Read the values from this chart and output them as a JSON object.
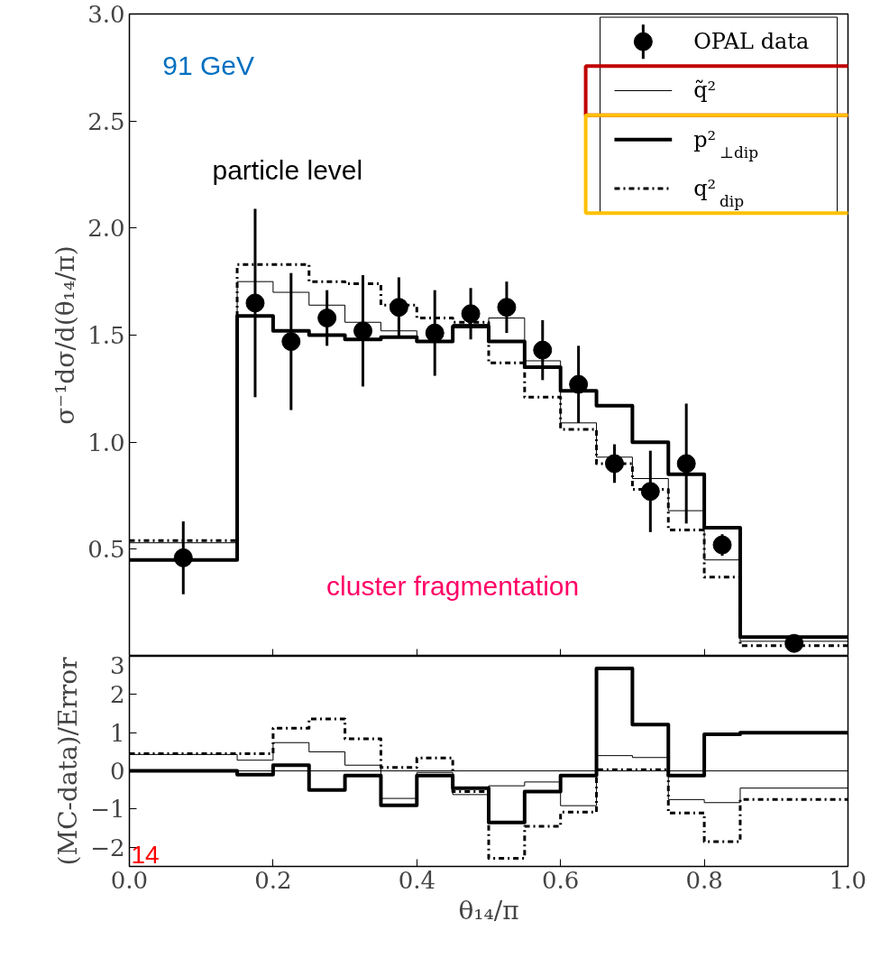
{
  "chart_data": [
    {
      "type": "step",
      "ylabel": "σ⁻¹dσ/d(θ₁₄/π)",
      "xlim": [
        0,
        1
      ],
      "ylim": [
        0,
        3
      ],
      "xticks": [
        0,
        0.2,
        0.4,
        0.6,
        0.8,
        1.0
      ],
      "yticks": [
        {
          "value": 0.5,
          "label": "0.5"
        },
        {
          "value": 1.0,
          "label": "1.0"
        },
        {
          "value": 1.5,
          "label": "1.5"
        },
        {
          "value": 2.0,
          "label": "2.0"
        },
        {
          "value": 2.5,
          "label": "2.5"
        },
        {
          "value": 3.0,
          "label": "3.0"
        }
      ],
      "tick_labels": "y",
      "legend": "top right",
      "annotations": [
        "91 GeV",
        "particle level",
        "cluster fragmentation"
      ],
      "series": [
        {
          "name": "OPAL data",
          "type": "scatter",
          "marker": "circle",
          "color": "#000000",
          "x": [
            0.075,
            0.175,
            0.225,
            0.275,
            0.325,
            0.375,
            0.425,
            0.475,
            0.525,
            0.575,
            0.625,
            0.675,
            0.725,
            0.775,
            0.825,
            0.925
          ],
          "values": [
            0.46,
            1.65,
            1.47,
            1.58,
            1.52,
            1.63,
            1.51,
            1.6,
            1.63,
            1.43,
            1.27,
            0.9,
            0.77,
            0.9,
            0.52,
            0.06
          ],
          "errors": [
            0.17,
            0.44,
            0.32,
            0.13,
            0.26,
            0.14,
            0.2,
            0.12,
            0.12,
            0.14,
            0.18,
            0.09,
            0.19,
            0.28,
            0.05,
            0.01
          ]
        },
        {
          "name": "q̃²",
          "color": "#000000",
          "line_style": "solid",
          "x": [
            0,
            0.15,
            0.2,
            0.25,
            0.3,
            0.35,
            0.4,
            0.45,
            0.5,
            0.55,
            0.6,
            0.65,
            0.7,
            0.75,
            0.8,
            0.85,
            1.0
          ],
          "values": [
            0.53,
            1.75,
            1.7,
            1.64,
            1.56,
            1.52,
            1.47,
            1.55,
            1.58,
            1.38,
            1.09,
            0.93,
            0.83,
            0.68,
            0.45,
            0.07,
            0.07
          ]
        },
        {
          "name": "p²$_{⊥dip}$",
          "color": "#000000",
          "line_style": "solid",
          "x": [
            0,
            0.15,
            0.2,
            0.25,
            0.3,
            0.35,
            0.4,
            0.45,
            0.5,
            0.55,
            0.6,
            0.65,
            0.7,
            0.75,
            0.8,
            0.85,
            1.0
          ],
          "values": [
            0.45,
            1.59,
            1.52,
            1.5,
            1.48,
            1.49,
            1.47,
            1.54,
            1.47,
            1.35,
            1.24,
            1.17,
            1.0,
            0.85,
            0.6,
            0.09,
            0.09
          ]
        },
        {
          "name": "q²$_{dip}$",
          "color": "#000000",
          "line_style": "dotted",
          "x": [
            0,
            0.15,
            0.2,
            0.25,
            0.3,
            0.35,
            0.4,
            0.45,
            0.5,
            0.55,
            0.6,
            0.65,
            0.7,
            0.75,
            0.8,
            0.85,
            1.0
          ],
          "values": [
            0.54,
            1.83,
            1.83,
            1.75,
            1.74,
            1.64,
            1.58,
            1.56,
            1.37,
            1.21,
            1.06,
            0.9,
            0.78,
            0.59,
            0.37,
            0.05,
            0.05
          ]
        }
      ]
    },
    {
      "type": "step",
      "xlabel": "θ₁₄/π",
      "ylabel": "(MC-data)/Error",
      "xlim": [
        0,
        1
      ],
      "ylim": [
        -2.5,
        3
      ],
      "xticks": [
        {
          "value": 0,
          "label": "0.0"
        },
        {
          "value": 0.2,
          "label": "0.2"
        },
        {
          "value": 0.4,
          "label": "0.4"
        },
        {
          "value": 0.6,
          "label": "0.6"
        },
        {
          "value": 0.8,
          "label": "0.8"
        },
        {
          "value": 1.0,
          "label": "1.0"
        }
      ],
      "yticks": [
        {
          "value": -2,
          "label": "−2"
        },
        {
          "value": -1,
          "label": "−1"
        },
        0,
        1,
        2,
        3
      ],
      "ref_lines": [
        {
          "axis": "y",
          "value": 0
        }
      ],
      "annotations": [
        "14"
      ],
      "series": [
        {
          "color": "#000000",
          "line_style": "solid",
          "x": [
            0,
            0.15,
            0.2,
            0.25,
            0.3,
            0.35,
            0.4,
            0.45,
            0.5,
            0.55,
            0.6,
            0.65,
            0.7,
            0.75,
            0.8,
            0.85,
            1.0
          ],
          "values": [
            0.43,
            0.28,
            0.74,
            0.5,
            0.15,
            -0.72,
            -0.04,
            -0.62,
            -0.39,
            -0.29,
            -0.91,
            0.4,
            0.35,
            -0.75,
            -0.83,
            -0.45,
            -0.45
          ]
        },
        {
          "color": "#000000",
          "line_style": "solid",
          "x": [
            0,
            0.15,
            0.2,
            0.25,
            0.3,
            0.35,
            0.4,
            0.45,
            0.5,
            0.55,
            0.6,
            0.65,
            0.7,
            0.75,
            0.8,
            0.85,
            1.0
          ],
          "values": [
            0.0,
            -0.1,
            0.15,
            -0.5,
            -0.12,
            -0.9,
            -0.12,
            -0.45,
            -1.35,
            -0.54,
            -0.12,
            2.68,
            1.21,
            -0.12,
            0.96,
            1.0,
            1.0
          ]
        },
        {
          "color": "#000000",
          "line_style": "dotted",
          "x": [
            0,
            0.15,
            0.2,
            0.25,
            0.3,
            0.35,
            0.4,
            0.45,
            0.5,
            0.55,
            0.6,
            0.65,
            0.7,
            0.75,
            0.8,
            0.85,
            1.0
          ],
          "values": [
            0.45,
            0.45,
            1.12,
            1.36,
            0.84,
            0.09,
            0.34,
            -0.54,
            -2.29,
            -1.45,
            -1.08,
            0.03,
            0.03,
            -1.1,
            -1.85,
            -0.75,
            -0.75
          ]
        }
      ]
    }
  ]
}
